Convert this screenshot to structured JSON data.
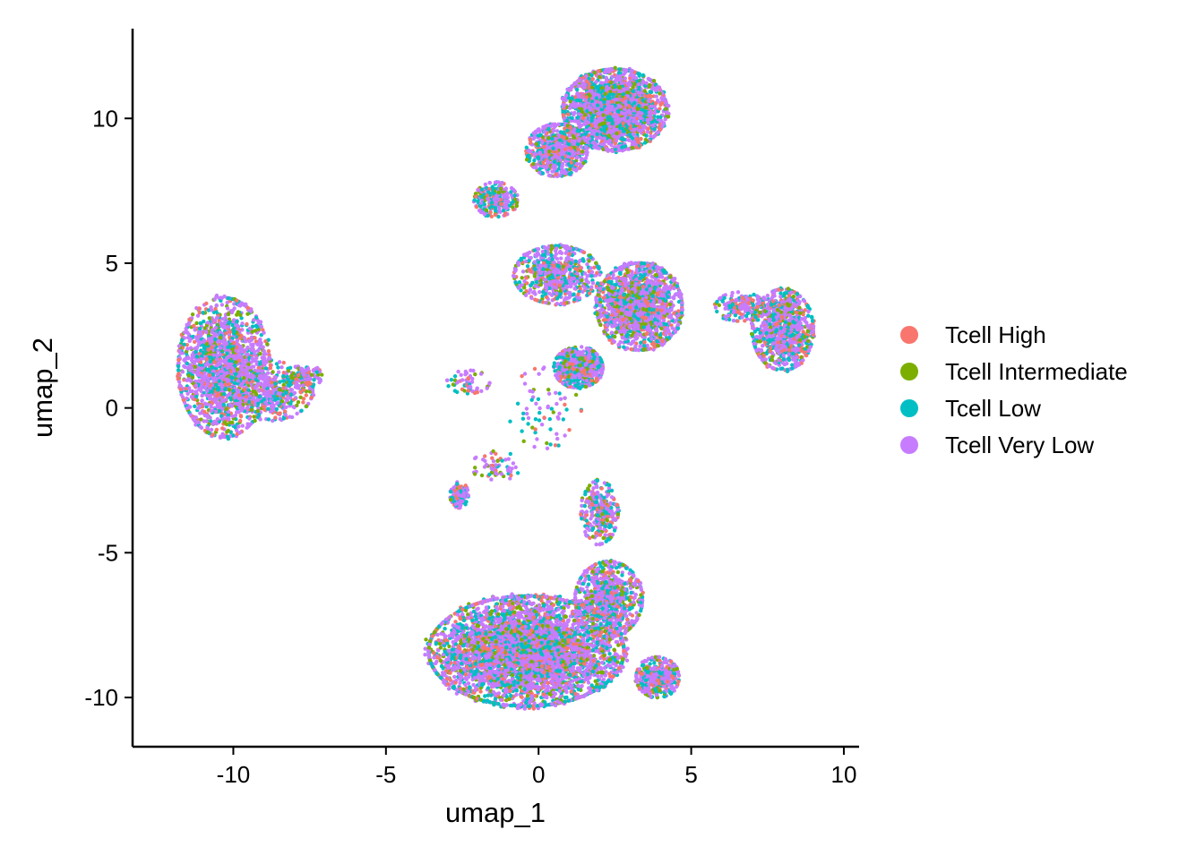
{
  "chart_data": {
    "type": "scatter",
    "title": "",
    "xlabel": "umap_1",
    "ylabel": "umap_2",
    "xlim": [
      -13.3,
      10.5
    ],
    "ylim": [
      -11.7,
      13.1
    ],
    "xticks": [
      -10,
      -5,
      0,
      5,
      10
    ],
    "yticks": [
      -10,
      -5,
      0,
      5,
      10
    ],
    "xtick_labels": [
      "-10",
      "-5",
      "0",
      "5",
      "10"
    ],
    "ytick_labels": [
      "-10",
      "-5",
      "0",
      "5",
      "10"
    ],
    "grid": false,
    "legend_position": "right",
    "series": [
      {
        "name": "Tcell High",
        "color": "#F8766D"
      },
      {
        "name": "Tcell Intermediate",
        "color": "#7CAE00"
      },
      {
        "name": "Tcell Low",
        "color": "#00BFC4"
      },
      {
        "name": "Tcell Very Low",
        "color": "#C77CFF"
      }
    ],
    "clusters": [
      {
        "cx": -10.3,
        "cy": 1.4,
        "rx": 1.5,
        "ry": 2.4,
        "n": 1700
      },
      {
        "cx": -8.7,
        "cy": 0.6,
        "rx": 1.3,
        "ry": 1.0,
        "n": 450
      },
      {
        "cx": -7.6,
        "cy": 1.1,
        "rx": 0.5,
        "ry": 0.4,
        "n": 90
      },
      {
        "cx": 2.5,
        "cy": 10.3,
        "rx": 1.7,
        "ry": 1.4,
        "n": 2200
      },
      {
        "cx": 0.6,
        "cy": 8.9,
        "rx": 1.0,
        "ry": 0.9,
        "n": 650
      },
      {
        "cx": -1.4,
        "cy": 7.2,
        "rx": 0.7,
        "ry": 0.6,
        "n": 260
      },
      {
        "cx": 3.3,
        "cy": 3.5,
        "rx": 1.4,
        "ry": 1.5,
        "n": 1700
      },
      {
        "cx": 1.3,
        "cy": 1.4,
        "rx": 0.8,
        "ry": 0.7,
        "n": 700
      },
      {
        "cx": 0.6,
        "cy": 4.6,
        "rx": 1.4,
        "ry": 1.0,
        "n": 650
      },
      {
        "cx": 6.6,
        "cy": 3.5,
        "rx": 0.8,
        "ry": 0.5,
        "n": 180
      },
      {
        "cx": 8.0,
        "cy": 2.7,
        "rx": 1.0,
        "ry": 1.4,
        "n": 1000
      },
      {
        "cx": -0.4,
        "cy": -8.4,
        "rx": 3.2,
        "ry": 1.9,
        "n": 4500
      },
      {
        "cx": 2.3,
        "cy": -6.6,
        "rx": 1.1,
        "ry": 1.3,
        "n": 800
      },
      {
        "cx": 2.0,
        "cy": -3.6,
        "rx": 0.6,
        "ry": 1.1,
        "n": 320
      },
      {
        "cx": 3.9,
        "cy": -9.3,
        "rx": 0.7,
        "ry": 0.7,
        "n": 450
      },
      {
        "cx": -2.6,
        "cy": -3.0,
        "rx": 0.3,
        "ry": 0.45,
        "n": 110
      },
      {
        "cx": -2.3,
        "cy": 0.9,
        "rx": 0.7,
        "ry": 0.4,
        "n": 60
      },
      {
        "cx": 0.2,
        "cy": 0.0,
        "rx": 1.2,
        "ry": 1.4,
        "n": 70
      },
      {
        "cx": -1.4,
        "cy": -2.0,
        "rx": 0.8,
        "ry": 0.5,
        "n": 60
      }
    ]
  }
}
